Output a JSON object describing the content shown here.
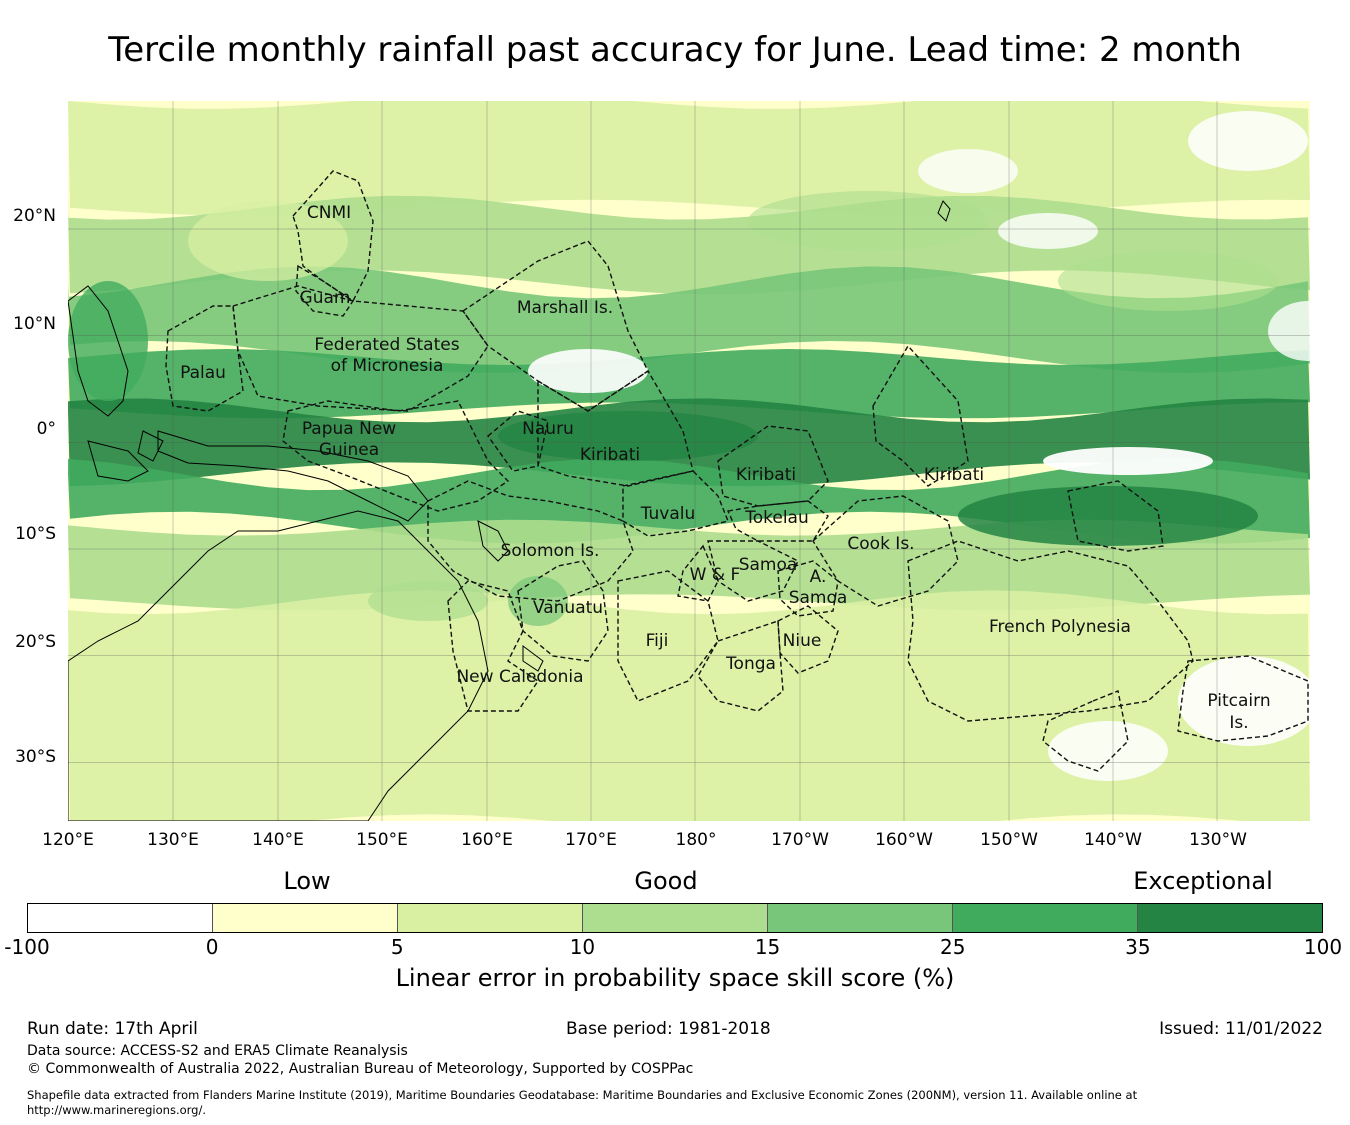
{
  "title": "Tercile monthly rainfall past accuracy for June. Lead time: 2 month",
  "map": {
    "lon_labels": [
      "120°E",
      "130°E",
      "140°E",
      "150°E",
      "160°E",
      "170°E",
      "180°",
      "170°W",
      "160°W",
      "150°W",
      "140°W",
      "130°W"
    ],
    "lat_labels": [
      "20°N",
      "10°N",
      "0°",
      "10°S",
      "20°S",
      "30°S"
    ],
    "regions": [
      {
        "name": "CNMI"
      },
      {
        "name": "Guam"
      },
      {
        "name": "Marshall Is."
      },
      {
        "name": "Federated States"
      },
      {
        "name": "of Micronesia"
      },
      {
        "name": "Palau"
      },
      {
        "name": "Papua New"
      },
      {
        "name": "Guinea"
      },
      {
        "name": "Nauru"
      },
      {
        "name": "Kiribati"
      },
      {
        "name": "Kiribati"
      },
      {
        "name": "Kiribati"
      },
      {
        "name": "Tuvalu"
      },
      {
        "name": "Tokelau"
      },
      {
        "name": "Solomon Is."
      },
      {
        "name": "Samoa"
      },
      {
        "name": "W & F"
      },
      {
        "name": "A."
      },
      {
        "name": "Samoa"
      },
      {
        "name": "Cook Is."
      },
      {
        "name": "Vanuatu"
      },
      {
        "name": "Fiji"
      },
      {
        "name": "Niue"
      },
      {
        "name": "Tonga"
      },
      {
        "name": "French Polynesia"
      },
      {
        "name": "New Caledonia"
      },
      {
        "name": "Pitcairn"
      },
      {
        "name": "Is."
      }
    ],
    "skill_bands": [
      {
        "from_lat": 32,
        "to_lat": 22,
        "level": 1
      },
      {
        "from_lat": 22,
        "to_lat": 15,
        "level": 2
      },
      {
        "from_lat": 15,
        "to_lat": 8,
        "level": 3
      },
      {
        "from_lat": 8,
        "to_lat": 3,
        "level": 4
      },
      {
        "from_lat": 3,
        "to_lat": -3,
        "level": 5
      },
      {
        "from_lat": -3,
        "to_lat": -8,
        "level": 4
      },
      {
        "from_lat": -8,
        "to_lat": -15,
        "level": 2
      },
      {
        "from_lat": -15,
        "to_lat": -36,
        "level": 1
      }
    ]
  },
  "legend": {
    "categories": [
      "Low",
      "Good",
      "Exceptional"
    ],
    "colors": [
      "#ffffff",
      "#ffffcc",
      "#d9f0a3",
      "#addd8e",
      "#78c679",
      "#41ab5d",
      "#238443"
    ],
    "ticks": [
      "-100",
      "0",
      "5",
      "10",
      "15",
      "25",
      "35",
      "100"
    ],
    "title": "Linear error in probability space skill score (%)"
  },
  "footer": {
    "run_date": "Run date: 17th April",
    "base_period": "Base period: 1981-2018",
    "issued": "Issued: 11/01/2022",
    "data_source": "Data source: ACCESS-S2 and ERA5 Climate Reanalysis",
    "copyright": "© Commonwealth of Australia 2022, Australian Bureau of Meteorology, Supported by COSPPac",
    "shapefile_1": "Shapefile data extracted from Flanders Marine Institute (2019), Maritime Boundaries Geodatabase: Maritime Boundaries and Exclusive Economic Zones (200NM), version 11. Available online at",
    "shapefile_2": "http://www.marineregions.org/."
  }
}
